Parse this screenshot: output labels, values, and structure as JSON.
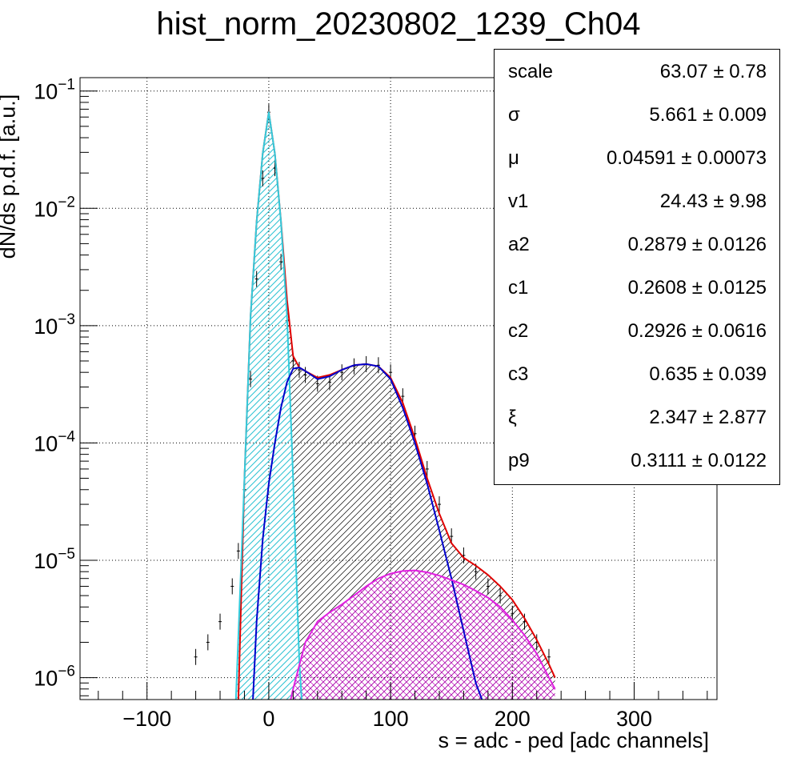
{
  "title": "hist_norm_20230802_1239_Ch04",
  "chart_data": {
    "type": "histogram_with_fit",
    "title": "hist_norm_20230802_1239_Ch04",
    "xlabel": "s = adc - ped [adc channels]",
    "ylabel": "dN/ds p.d.f. [a.u.]",
    "xlim": [
      -155,
      368
    ],
    "ylim": [
      6.5e-07,
      0.13
    ],
    "yscale": "log",
    "grid": true,
    "x_ticks": [
      -100,
      0,
      100,
      200,
      300
    ],
    "x_tick_labels": [
      "−100",
      "0",
      "100",
      "200",
      "300"
    ],
    "y_ticks": [
      1e-06,
      1e-05,
      0.0001,
      0.001,
      0.01,
      0.1
    ],
    "y_tick_labels": [
      {
        "base": "10",
        "exp": "−6"
      },
      {
        "base": "10",
        "exp": "−5"
      },
      {
        "base": "10",
        "exp": "−4"
      },
      {
        "base": "10",
        "exp": "−3"
      },
      {
        "base": "10",
        "exp": "−2"
      },
      {
        "base": "10",
        "exp": "−1"
      }
    ],
    "series": [
      {
        "role": "data",
        "color": "#000000",
        "x": [
          -60,
          -50,
          -40,
          -30,
          -25,
          -20,
          -15,
          -10,
          -5,
          0,
          5,
          10,
          15,
          20,
          25,
          30,
          40,
          50,
          60,
          70,
          80,
          90,
          100,
          110,
          120,
          130,
          140,
          150,
          160,
          170,
          180,
          190,
          200,
          210,
          220,
          230
        ],
        "y": [
          1.5e-06,
          2e-06,
          3e-06,
          6e-06,
          1.2e-05,
          4e-05,
          0.00035,
          0.0025,
          0.018,
          0.066,
          0.022,
          0.0035,
          0.0011,
          0.0005,
          0.00042,
          0.00038,
          0.00032,
          0.00033,
          0.0004,
          0.00045,
          0.00047,
          0.00046,
          0.0004,
          0.00025,
          0.00012,
          6e-05,
          3e-05,
          1.6e-05,
          1.1e-05,
          8e-06,
          6e-06,
          5e-06,
          3.5e-06,
          3e-06,
          2e-06,
          1.5e-06
        ]
      },
      {
        "role": "total-fit",
        "color": "#e00000",
        "x": [
          -25,
          -20,
          -15,
          -10,
          -5,
          0,
          5,
          10,
          15,
          20,
          25,
          30,
          40,
          50,
          60,
          70,
          80,
          90,
          100,
          110,
          120,
          130,
          140,
          150,
          160,
          170,
          180,
          190,
          200,
          210,
          220,
          230,
          235
        ],
        "y": [
          6.5e-07,
          5e-05,
          0.0012,
          0.0077,
          0.0293,
          0.066,
          0.0293,
          0.0078,
          0.00165,
          0.00055,
          0.00044,
          0.00041,
          0.00036,
          0.00038,
          0.00042,
          0.00046,
          0.00047,
          0.00045,
          0.00036,
          0.00022,
          0.00011,
          5e-05,
          2.5e-05,
          1.4e-05,
          1.05e-05,
          9e-06,
          7.5e-06,
          6e-06,
          4.6e-06,
          3.2e-06,
          2.1e-06,
          1.3e-06,
          1e-06
        ]
      },
      {
        "role": "pedestal-fit",
        "color": "#33ccdd",
        "x": [
          -27,
          -20,
          -15,
          -10,
          -5,
          0,
          5,
          10,
          15,
          20,
          25,
          27
        ],
        "y": [
          6.5e-07,
          5e-05,
          0.0012,
          0.0077,
          0.0293,
          0.066,
          0.0293,
          0.0077,
          0.0012,
          5e-05,
          1.4e-06,
          6.5e-07
        ]
      },
      {
        "role": "single-pe-fit",
        "color": "#0000cc",
        "x": [
          -13,
          -10,
          -5,
          0,
          5,
          10,
          15,
          20,
          25,
          30,
          40,
          50,
          60,
          70,
          80,
          90,
          100,
          110,
          120,
          130,
          140,
          150,
          160,
          170,
          175
        ],
        "y": [
          6.5e-07,
          3e-06,
          1.5e-05,
          4.5e-05,
          0.0001,
          0.0002,
          0.00033,
          0.00043,
          0.00044,
          0.00041,
          0.00035,
          0.00037,
          0.00042,
          0.00046,
          0.00047,
          0.00045,
          0.00035,
          0.0002,
          0.0001,
          4.5e-05,
          1.8e-05,
          7e-06,
          2.5e-06,
          9e-07,
          6.5e-07
        ]
      },
      {
        "role": "double-pe-fit",
        "color": "#e020e0",
        "x": [
          18,
          20,
          30,
          40,
          50,
          60,
          70,
          80,
          90,
          100,
          110,
          120,
          130,
          140,
          150,
          160,
          170,
          180,
          190,
          200,
          210,
          220,
          230,
          235
        ],
        "y": [
          6.5e-07,
          8e-07,
          2e-06,
          3e-06,
          3.6e-06,
          4.2e-06,
          5e-06,
          6e-06,
          7e-06,
          7.7e-06,
          8.1e-06,
          8.2e-06,
          7.9e-06,
          7.4e-06,
          6.8e-06,
          6.2e-06,
          5.5e-06,
          4.8e-06,
          4e-06,
          3.1e-06,
          2.3e-06,
          1.6e-06,
          1e-06,
          8e-07
        ]
      }
    ]
  },
  "stats": [
    {
      "name": "scale",
      "value": "63.07 ± 0.78"
    },
    {
      "name": "σ",
      "value": "5.661 ± 0.009"
    },
    {
      "name": "μ",
      "value": "0.04591 ± 0.00073"
    },
    {
      "name": "v1",
      "value": "24.43 ± 9.98"
    },
    {
      "name": "a2",
      "value": "0.2879 ± 0.0126"
    },
    {
      "name": "c1",
      "value": "0.2608 ± 0.0125"
    },
    {
      "name": "c2",
      "value": "0.2926 ± 0.0616"
    },
    {
      "name": "c3",
      "value": "0.635 ± 0.039"
    },
    {
      "name": "ξ",
      "value": "2.347 ± 2.877"
    },
    {
      "name": "p9",
      "value": "0.3111 ± 0.0122"
    }
  ]
}
